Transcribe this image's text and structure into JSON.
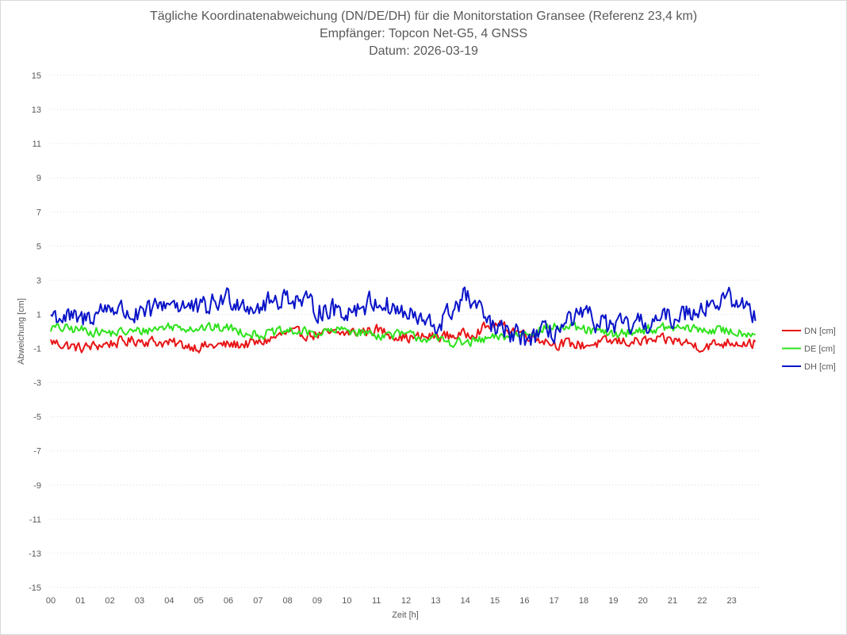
{
  "chart_data": {
    "type": "line",
    "title": "Tägliche Koordinatenabweichung (DN/DE/DH) für die Monitorstation Gransee (Referenz 23,4 km)",
    "subtitle": "Empfänger: Topcon Net-G5, 4 GNSS",
    "date_line": "Datum: 2026-03-19",
    "xlabel": "Zeit [h]",
    "ylabel": "Abweichung [cm]",
    "x_ticks": [
      "00",
      "01",
      "02",
      "03",
      "04",
      "05",
      "06",
      "07",
      "08",
      "09",
      "10",
      "11",
      "12",
      "13",
      "14",
      "15",
      "16",
      "17",
      "18",
      "19",
      "20",
      "21",
      "22",
      "23"
    ],
    "xlim": [
      0,
      24
    ],
    "y_ticks": [
      15,
      13,
      11,
      9,
      7,
      5,
      3,
      1,
      -1,
      -3,
      -5,
      -7,
      -9,
      -11,
      -13,
      -15
    ],
    "ylim": [
      -15,
      15
    ],
    "grid": "horizontal-dotted",
    "legend_position": "right",
    "series": [
      {
        "name": "DN [cm]",
        "color": "#e81416",
        "x": [
          0,
          1,
          2,
          3,
          4,
          5,
          6,
          7,
          8,
          9,
          10,
          11,
          12,
          13,
          14,
          15,
          16,
          17,
          18,
          19,
          20,
          21,
          22,
          23,
          23.8
        ],
        "values": [
          -0.6,
          -1.0,
          -0.7,
          -0.5,
          -0.7,
          -0.9,
          -0.8,
          -0.7,
          -0.1,
          -0.2,
          -0.1,
          0.1,
          -0.4,
          -0.3,
          -0.2,
          0.4,
          -0.1,
          -0.7,
          -0.8,
          -0.6,
          -0.6,
          -0.5,
          -0.9,
          -0.6,
          -0.7
        ]
      },
      {
        "name": "DE [cm]",
        "color": "#2ee21d",
        "x": [
          0,
          1,
          2,
          3,
          4,
          5,
          6,
          7,
          8,
          9,
          10,
          11,
          12,
          13,
          14,
          15,
          16,
          17,
          18,
          19,
          20,
          21,
          22,
          23,
          23.8
        ],
        "values": [
          0.2,
          0.1,
          -0.1,
          0.0,
          0.3,
          0.2,
          0.2,
          -0.2,
          0.0,
          -0.1,
          0.1,
          -0.2,
          -0.2,
          -0.5,
          -0.7,
          -0.4,
          -0.1,
          0.3,
          0.1,
          -0.2,
          0.1,
          0.2,
          0.1,
          0.0,
          -0.1
        ]
      },
      {
        "name": "DH [cm]",
        "color": "#0a14c8",
        "x": [
          0,
          1,
          2,
          3,
          4,
          5,
          6,
          7,
          8,
          9,
          10,
          11,
          12,
          13,
          14,
          15,
          16,
          17,
          18,
          19,
          20,
          21,
          22,
          23,
          23.8
        ],
        "values": [
          1.0,
          0.6,
          1.5,
          0.8,
          1.8,
          1.2,
          2.0,
          1.4,
          2.1,
          1.3,
          1.2,
          1.8,
          1.0,
          0.2,
          2.1,
          0.1,
          -0.4,
          0.0,
          0.9,
          0.2,
          0.4,
          0.8,
          1.5,
          1.9,
          1.0
        ]
      }
    ]
  }
}
